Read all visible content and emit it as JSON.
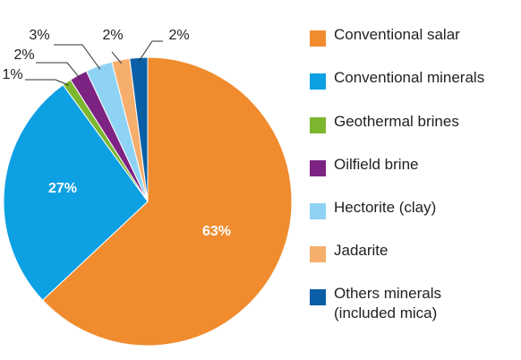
{
  "chart_data": {
    "type": "pie",
    "title": "",
    "slices": [
      {
        "label": "Conventional salar",
        "value": 63,
        "value_label": "63%",
        "color": "#F08C2E"
      },
      {
        "label": "Conventional minerals",
        "value": 27,
        "value_label": "27%",
        "color": "#0DA0E3"
      },
      {
        "label": "Geothermal brines",
        "value": 1,
        "value_label": "1%",
        "color": "#7CB62F"
      },
      {
        "label": "Oilfield brine",
        "value": 2,
        "value_label": "2%",
        "color": "#7D2383"
      },
      {
        "label": "Hectorite (clay)",
        "value": 3,
        "value_label": "3%",
        "color": "#8FD3F4"
      },
      {
        "label": "Jadarite",
        "value": 2,
        "value_label": "2%",
        "color": "#F6AE6D"
      },
      {
        "label": "Others minerals\n(included mica)",
        "value": 2,
        "value_label": "2%",
        "color": "#0B5FA6"
      }
    ],
    "legend_position": "right",
    "start": "12 o'clock",
    "direction": "clockwise"
  }
}
